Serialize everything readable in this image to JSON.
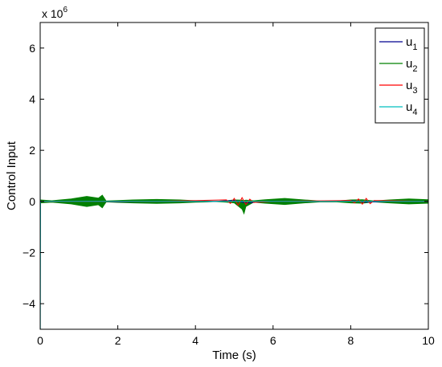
{
  "chart_data": {
    "type": "line",
    "xlabel": "Time (s)",
    "ylabel": "Control Input",
    "y_exponent_label": "x 10",
    "y_exponent": "6",
    "xlim": [
      0,
      10
    ],
    "ylim": [
      -5000000,
      7000000
    ],
    "x_ticks": [
      0,
      2,
      4,
      6,
      8,
      10
    ],
    "x_tick_labels": [
      "0",
      "2",
      "4",
      "6",
      "8",
      "10"
    ],
    "y_ticks": [
      -4000000,
      -2000000,
      0,
      2000000,
      4000000,
      6000000
    ],
    "y_tick_labels": [
      "−4",
      "−2",
      "0",
      "2",
      "4",
      "6"
    ],
    "grid": false,
    "legend_position": "top-right",
    "series": [
      {
        "name": "u1",
        "label_base": "u",
        "label_sub": "1",
        "color": "#00008f",
        "x": [
          0,
          1,
          2,
          3,
          4,
          4.5,
          5,
          5.3,
          6,
          7,
          7.5,
          8,
          8.4,
          9,
          10
        ],
        "y": [
          0,
          10000,
          -10000,
          5000,
          0,
          0,
          40000,
          -60000,
          10000,
          0,
          0,
          30000,
          -30000,
          0,
          0
        ]
      },
      {
        "name": "u2",
        "label_base": "u",
        "label_sub": "2",
        "color": "#008000",
        "envelope_x": [
          0,
          0.3,
          0.8,
          1.2,
          1.5,
          1.6,
          1.7,
          2.0,
          2.4,
          3.0,
          3.6,
          4.0,
          4.3,
          4.5,
          4.8,
          5.0,
          5.2,
          5.25,
          5.3,
          5.5,
          5.8,
          6.3,
          6.8,
          7.2,
          7.6,
          8.0,
          8.3,
          8.6,
          9.0,
          9.5,
          10.0
        ],
        "envelope_upper": [
          60000,
          30000,
          100000,
          200000,
          130000,
          250000,
          20000,
          40000,
          60000,
          80000,
          60000,
          30000,
          20000,
          5000,
          30000,
          60000,
          50000,
          40000,
          50000,
          30000,
          70000,
          120000,
          60000,
          20000,
          15000,
          60000,
          70000,
          20000,
          60000,
          100000,
          70000
        ],
        "envelope_lower": [
          -60000,
          -30000,
          -100000,
          -200000,
          -130000,
          -250000,
          -20000,
          -40000,
          -60000,
          -80000,
          -60000,
          -30000,
          -20000,
          -5000,
          -30000,
          -60000,
          -300000,
          -480000,
          -200000,
          -30000,
          -70000,
          -120000,
          -60000,
          -20000,
          -15000,
          -60000,
          -70000,
          -20000,
          -60000,
          -100000,
          -70000
        ]
      },
      {
        "name": "u3",
        "label_base": "u",
        "label_sub": "3",
        "color": "#ff0000",
        "x": [
          0,
          3,
          4.8,
          4.9,
          5.0,
          5.1,
          5.2,
          5.3,
          5.4,
          5.5,
          6,
          8.0,
          8.1,
          8.2,
          8.3,
          8.4,
          8.5,
          8.6,
          10
        ],
        "y": [
          0,
          0,
          60000,
          -80000,
          120000,
          -150000,
          150000,
          -120000,
          90000,
          -40000,
          0,
          40000,
          -60000,
          100000,
          -110000,
          120000,
          -90000,
          40000,
          0
        ]
      },
      {
        "name": "u4",
        "label_base": "u",
        "label_sub": "4",
        "color": "#00bfbf",
        "x": [
          0,
          0.005,
          0.01,
          0.02,
          0.5,
          2,
          4,
          4.5,
          6,
          7.5,
          8,
          10
        ],
        "y": [
          7000000,
          -5000000,
          0,
          0,
          0,
          0,
          0,
          0,
          0,
          0,
          0,
          0
        ]
      }
    ]
  }
}
